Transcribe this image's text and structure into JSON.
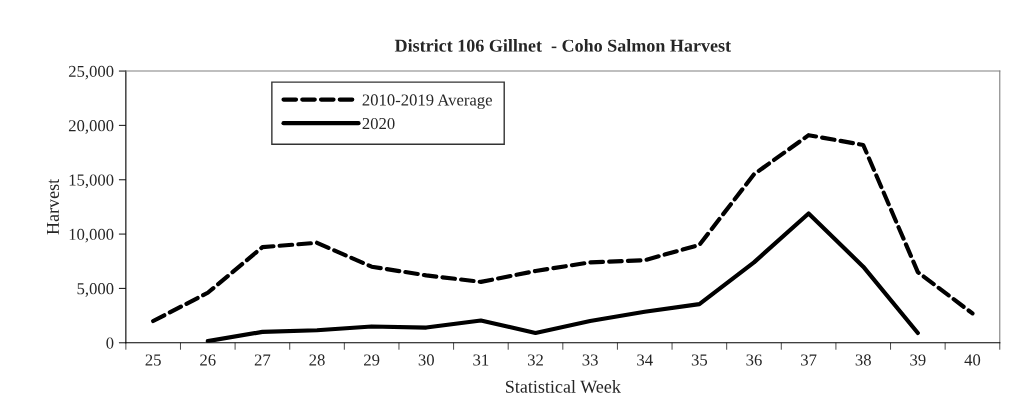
{
  "chart_data": {
    "type": "line",
    "title": "District 106 Gillnet  - Coho Salmon Harvest",
    "xlabel": "Statistical Week",
    "ylabel": "Harvest",
    "categories": [
      "25",
      "26",
      "27",
      "28",
      "29",
      "30",
      "31",
      "32",
      "33",
      "34",
      "35",
      "36",
      "37",
      "38",
      "39",
      "40"
    ],
    "series": [
      {
        "name": "2010-2019 Average",
        "color": "#000000",
        "line_style": "dashed",
        "values": [
          2000,
          4600,
          8800,
          9200,
          7000,
          6200,
          5600,
          6600,
          7400,
          7600,
          9000,
          15500,
          19100,
          18200,
          6500,
          2700
        ]
      },
      {
        "name": "2020",
        "color": "#000000",
        "line_style": "solid",
        "values": [
          null,
          150,
          1000,
          1150,
          1500,
          1400,
          2050,
          900,
          2000,
          2850,
          3550,
          7400,
          11900,
          7000,
          900,
          null
        ]
      }
    ],
    "ylim": [
      0,
      25000
    ],
    "yticks": [
      {
        "value": 0,
        "label": "0"
      },
      {
        "value": 5000,
        "label": "5,000"
      },
      {
        "value": 10000,
        "label": "10,000"
      },
      {
        "value": 15000,
        "label": "15,000"
      },
      {
        "value": 20000,
        "label": "20,000"
      },
      {
        "value": 25000,
        "label": "25,000"
      }
    ],
    "grid": false,
    "legend": "top",
    "marker": "none"
  }
}
